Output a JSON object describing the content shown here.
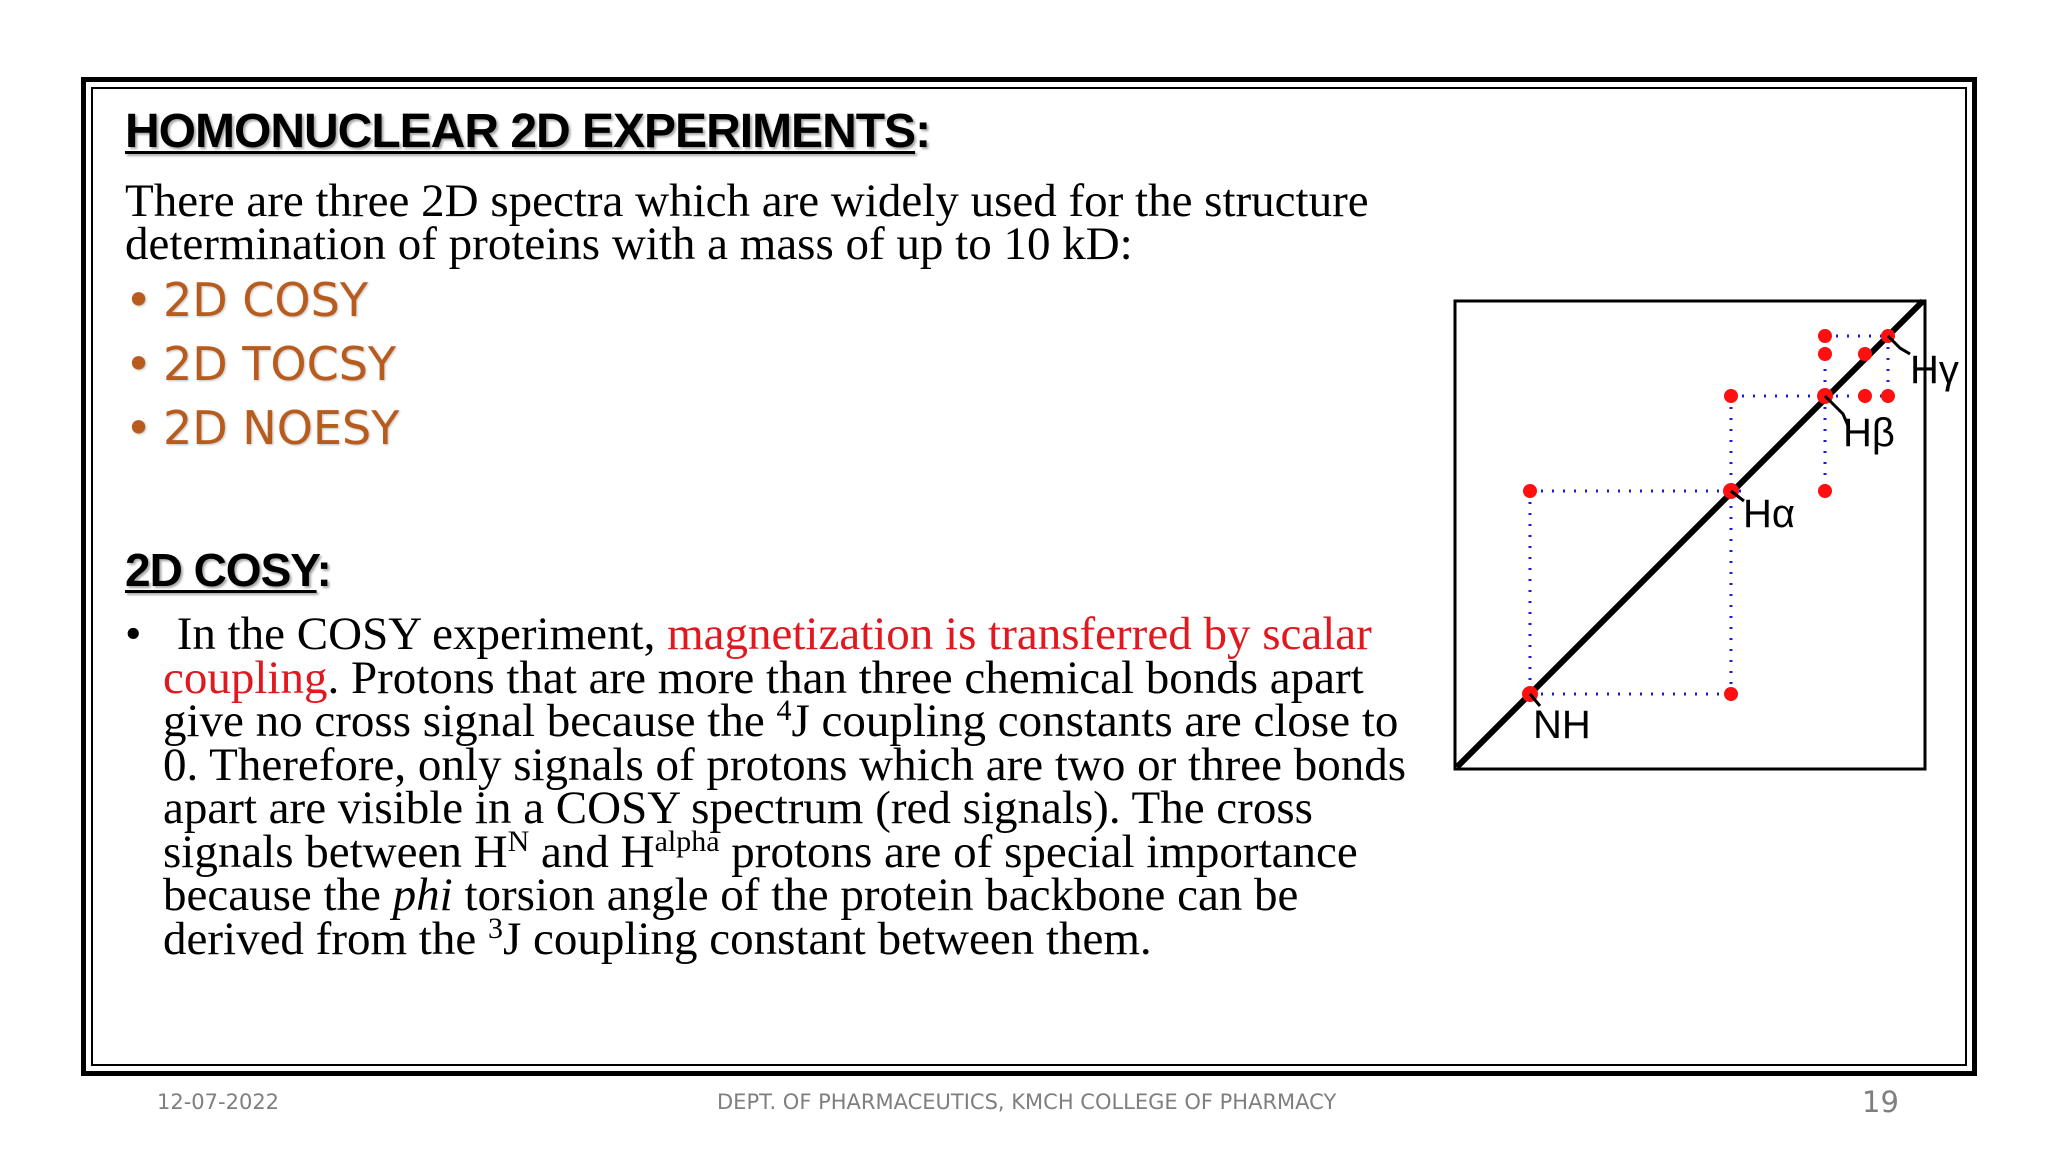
{
  "heading": {
    "title": "HOMONUCLEAR 2D EXPERIMENTS",
    "title_colon": ":"
  },
  "intro": {
    "text": "There are three 2D spectra which are widely used for the structure determination of proteins with a mass of up to 10 kD:"
  },
  "bullets": [
    {
      "marker": "•",
      "label": "2D COSY"
    },
    {
      "marker": "•",
      "label": "2D TOCSY"
    },
    {
      "marker": "•",
      "label": "2D NOESY"
    }
  ],
  "cosy": {
    "title": "2D COSY",
    "title_colon": ":",
    "marker": "•",
    "p1": "In the COSY experiment, ",
    "p_red": "magnetization is transferred by scalar coupling",
    "p2": ". Protons that are more than three chemical bonds apart give no cross signal because the ",
    "sup1": "4",
    "p3": "J coupling constants are close to 0. Therefore, only signals of protons which are two or three bonds apart are visible in a COSY spectrum (red signals). The cross signals between H",
    "sup2": "N",
    "p4": " and H",
    "sup3": "alpha",
    "p5": " protons are of special importance because the ",
    "p_italic": "phi",
    "p6": " torsion angle of the protein backbone can be derived from the ",
    "sup4": "3",
    "p7": "J coupling constant between them."
  },
  "spectrum": {
    "labels": {
      "nh": "NH",
      "ha": "Hα",
      "hb": "Hβ",
      "hg": "Hγ"
    },
    "colors": {
      "signal": "#ff1010",
      "dotted_line": "#1a1adc",
      "diagonal": "#000000"
    }
  },
  "footer": {
    "date": "12-07-2022",
    "dept": "DEPT. OF PHARMACEUTICS, KMCH COLLEGE OF PHARMACY",
    "page": "19"
  }
}
